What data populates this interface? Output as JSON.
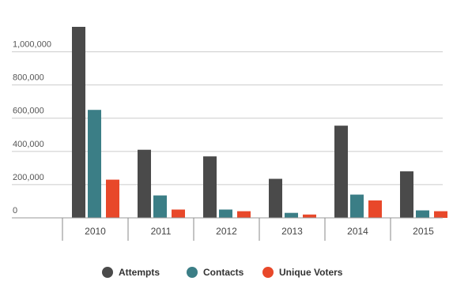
{
  "chart_data": {
    "type": "bar",
    "categories": [
      "2010",
      "2011",
      "2012",
      "2013",
      "2014",
      "2015"
    ],
    "series": [
      {
        "name": "Attempts",
        "color": "#4a4a4a",
        "values": [
          1150000,
          410000,
          370000,
          235000,
          555000,
          280000
        ]
      },
      {
        "name": "Contacts",
        "color": "#3b7e86",
        "values": [
          650000,
          135000,
          50000,
          30000,
          140000,
          45000
        ]
      },
      {
        "name": "Unique Voters",
        "color": "#e8482a",
        "values": [
          230000,
          50000,
          40000,
          20000,
          105000,
          40000
        ]
      }
    ],
    "y_ticks": [
      0,
      200000,
      400000,
      600000,
      800000,
      1000000
    ],
    "y_tick_labels": [
      "0",
      "200,000",
      "400,000",
      "600,000",
      "800,000",
      "1,000,000"
    ],
    "ylim": [
      0,
      1150000
    ],
    "grid": true,
    "legend": "bottom-center"
  }
}
